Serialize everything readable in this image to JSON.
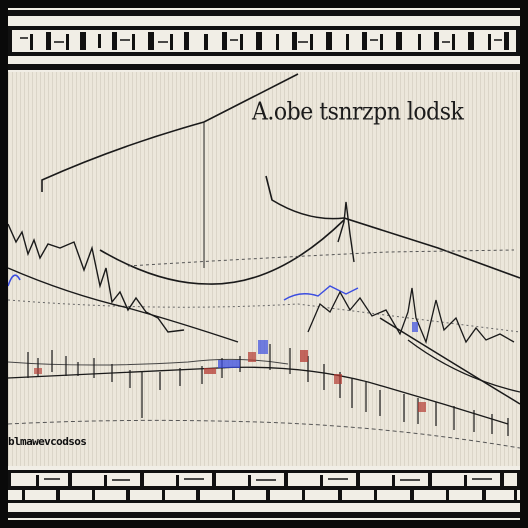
{
  "figure": {
    "top_heading": "A.obe tsnrzpn lodsk",
    "bottom_caption": "blmawevcodsos"
  },
  "colors": {
    "paper": "#f1eee6",
    "ink": "#161616",
    "blue_accent": "#3b4de0",
    "red_accent": "#b43a32"
  }
}
